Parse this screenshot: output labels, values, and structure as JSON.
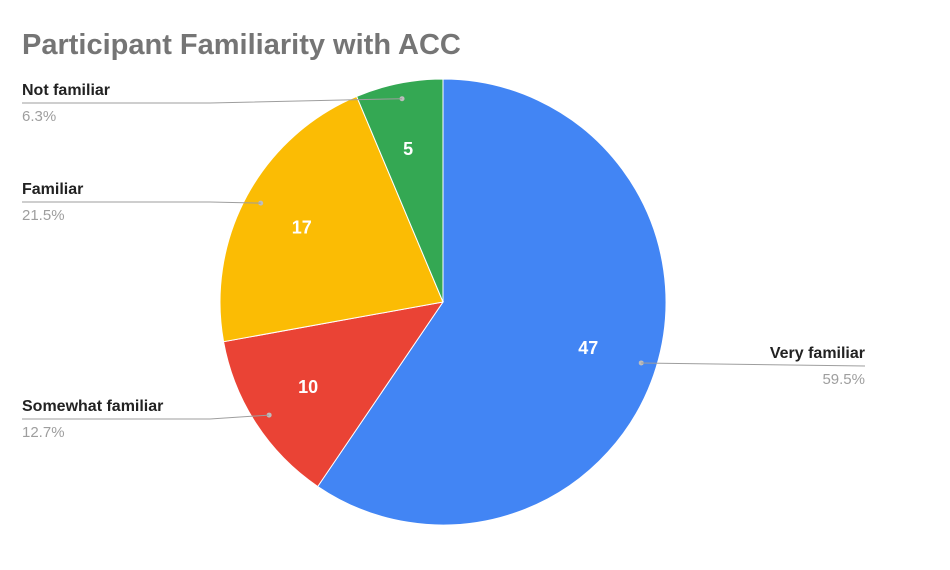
{
  "chart_data": {
    "type": "pie",
    "title": "Participant Familiarity with ACC",
    "start_angle_deg": 0,
    "direction": "clockwise",
    "legend": "labels beside slices",
    "slices": [
      {
        "label": "Very familiar",
        "value": 47,
        "percent_label": "59.5%",
        "color": "#4285f4"
      },
      {
        "label": "Somewhat familiar",
        "value": 10,
        "percent_label": "12.7%",
        "color": "#ea4335"
      },
      {
        "label": "Familiar",
        "value": 17,
        "percent_label": "21.5%",
        "color": "#fbbc04"
      },
      {
        "label": "Not familiar",
        "value": 5,
        "percent_label": "6.3%",
        "color": "#34a853"
      }
    ]
  }
}
